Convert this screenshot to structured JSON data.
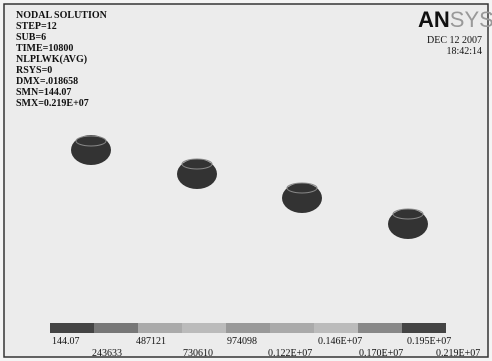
{
  "header": {
    "lines": [
      "NODAL SOLUTION",
      "STEP=12",
      "SUB=6",
      "TIME=10800",
      "NLPLWK(AVG)",
      "RSYS=0",
      "DMX=.018658",
      "SMN=144.07",
      "SMX=0.219E+07"
    ]
  },
  "logo": {
    "bold": "AN",
    "faint": "SYS"
  },
  "timestamp": {
    "date": "DEC 12 2007",
    "time": "18:42:14"
  },
  "legend": {
    "top_labels": [
      "144.07",
      "487121",
      "974098",
      "0.146E+07",
      "0.195E+07"
    ],
    "bottom_labels": [
      "243633",
      "730610",
      "0.122E+07",
      "0.170E+07",
      "0.219E+07"
    ]
  }
}
